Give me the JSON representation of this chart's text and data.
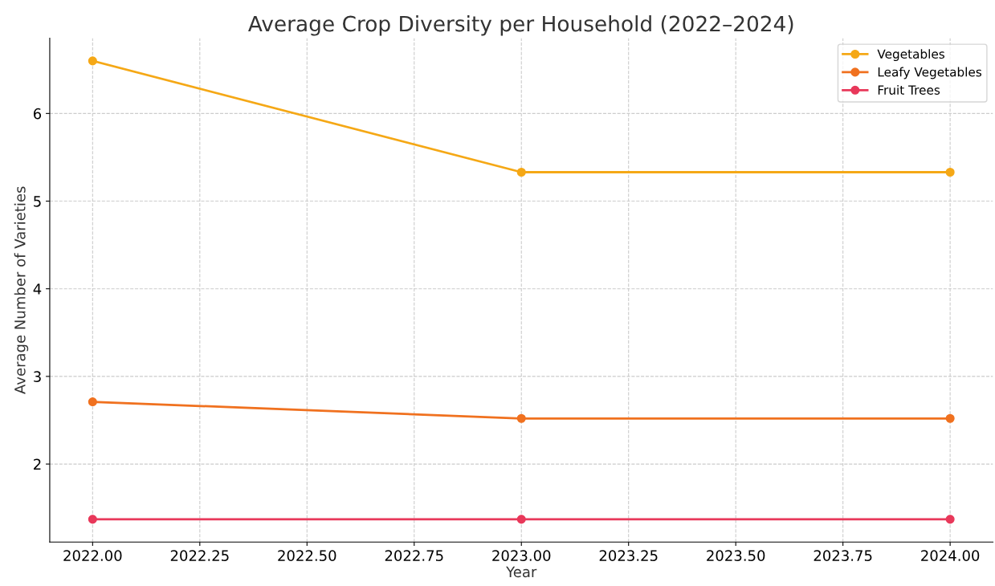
{
  "chart_data": {
    "type": "line",
    "title": "Average Crop Diversity per Household (2022–2024)",
    "xlabel": "Year",
    "ylabel": "Average Number of Varieties",
    "x": [
      2022,
      2023,
      2024
    ],
    "series": [
      {
        "name": "Vegetables",
        "color": "#f5a816",
        "values": [
          6.6,
          5.33,
          5.33
        ]
      },
      {
        "name": "Leafy Vegetables",
        "color": "#f0711f",
        "values": [
          2.71,
          2.52,
          2.52
        ]
      },
      {
        "name": "Fruit Trees",
        "color": "#e8385a",
        "values": [
          1.37,
          1.37,
          1.37
        ]
      }
    ],
    "xlim": [
      2021.9,
      2024.1
    ],
    "ylim": [
      1.11,
      6.86
    ],
    "xticks": [
      {
        "value": 2022,
        "label": "2022.00"
      },
      {
        "value": 2022.25,
        "label": "2022.25"
      },
      {
        "value": 2022.5,
        "label": "2022.50"
      },
      {
        "value": 2022.75,
        "label": "2022.75"
      },
      {
        "value": 2023,
        "label": "2023.00"
      },
      {
        "value": 2023.25,
        "label": "2023.25"
      },
      {
        "value": 2023.5,
        "label": "2023.50"
      },
      {
        "value": 2023.75,
        "label": "2023.75"
      },
      {
        "value": 2024,
        "label": "2024.00"
      }
    ],
    "yticks": [
      2,
      3,
      4,
      5,
      6
    ],
    "grid": true,
    "legend": "top right",
    "marker": "circle",
    "line_style": "solid"
  }
}
